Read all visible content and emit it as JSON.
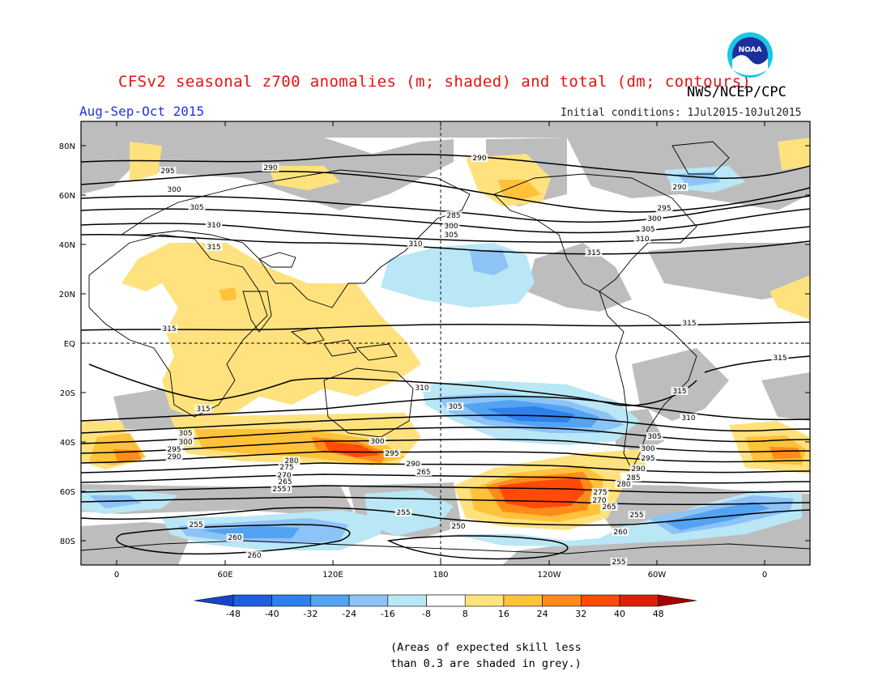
{
  "header": {
    "title": "CFSv2 seasonal z700 anomalies (m; shaded) and total (dm; contours)",
    "agency": "NWS/NCEP/CPC",
    "period": "Aug-Sep-Oct 2015",
    "initial_conditions": "Initial conditions: 1Jul2015-10Jul2015"
  },
  "logo": {
    "text": "NOAA"
  },
  "map": {
    "lat_labels": [
      "80N",
      "60N",
      "40N",
      "20N",
      "EQ",
      "20S",
      "40S",
      "60S",
      "80S"
    ],
    "lon_labels": [
      "0",
      "60E",
      "120E",
      "180",
      "120W",
      "60W",
      "0"
    ],
    "contour_labels": {
      "north": [
        "295",
        "290",
        "300",
        "305",
        "310",
        "315",
        "290",
        "285",
        "300",
        "305",
        "310",
        "290",
        "295",
        "300",
        "305",
        "310",
        "315"
      ],
      "tropics": [
        "315",
        "315",
        "315",
        "315",
        "315"
      ],
      "south": [
        "310",
        "305",
        "300",
        "295",
        "290",
        "310",
        "300",
        "295",
        "290",
        "265",
        "305",
        "310",
        "305",
        "300",
        "295",
        "290",
        "285",
        "280",
        "275",
        "270",
        "265",
        "280",
        "275",
        "270",
        "265",
        "260",
        "255",
        "255",
        "250",
        "255",
        "260",
        "255",
        "260",
        "260",
        "255"
      ]
    }
  },
  "colorbar": {
    "labels": [
      "-48",
      "-40",
      "-32",
      "-24",
      "-16",
      "-8",
      "8",
      "16",
      "24",
      "32",
      "40",
      "48"
    ],
    "colors": [
      "#1e5fdc",
      "#2f80ea",
      "#53a3f2",
      "#8dc3f7",
      "#b9e7f5",
      "#ffffff",
      "#ffe27e",
      "#ffc23a",
      "#ff8c1a",
      "#ff4a0a",
      "#e01f0a",
      "#b20a08"
    ],
    "low_arrow_color": "#1646c8",
    "high_arrow_color": "#a50000"
  },
  "note": {
    "line1": "(Areas of expected skill less",
    "line2": "than 0.3 are shaded in grey.)"
  }
}
